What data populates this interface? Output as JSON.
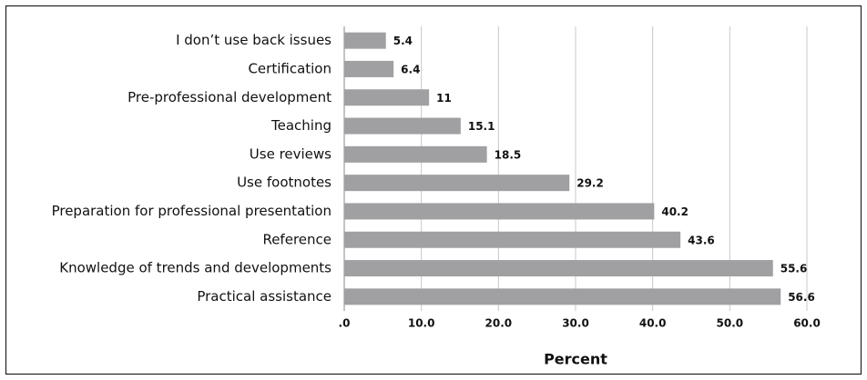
{
  "chart_data": {
    "type": "bar",
    "orientation": "horizontal",
    "categories": [
      "I don’t use back issues",
      "Certification",
      "Pre-professional development",
      "Teaching",
      "Use reviews",
      "Use footnotes",
      "Preparation for professional presentation",
      "Reference",
      "Knowledge of trends and developments",
      "Practical assistance"
    ],
    "values": [
      5.4,
      6.4,
      11,
      15.1,
      18.5,
      29.2,
      40.2,
      43.6,
      55.6,
      56.6
    ],
    "color": "#a0a0a3",
    "xlabel": "Percent",
    "xlim": [
      0,
      60
    ],
    "xticks": [
      {
        "value": 0,
        "label": ".0"
      },
      {
        "value": 10,
        "label": "10.0"
      },
      {
        "value": 20,
        "label": "20.0"
      },
      {
        "value": 30,
        "label": "30.0"
      },
      {
        "value": 40,
        "label": "40.0"
      },
      {
        "value": 50,
        "label": "50.0"
      },
      {
        "value": 60,
        "label": "60.0"
      }
    ],
    "grid": true
  }
}
